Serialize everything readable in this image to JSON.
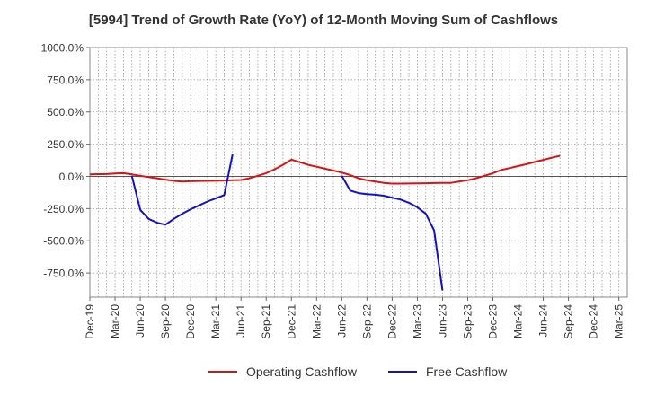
{
  "chart_data": {
    "type": "line",
    "title": "[5994]  Trend of Growth Rate (YoY) of 12-Month Moving Sum of Cashflows",
    "xlabel": "",
    "ylabel": "",
    "ylim": [
      -937.5,
      1000
    ],
    "yticks": [
      1000,
      750,
      500,
      250,
      0,
      -250,
      -500,
      -750
    ],
    "ytick_labels": [
      "1000.0%",
      "750.0%",
      "500.0%",
      "250.0%",
      "0.0%",
      "-250.0%",
      "-500.0%",
      "-750.0%"
    ],
    "x_tick_labels": [
      "Dec-19",
      "Mar-20",
      "Jun-20",
      "Sep-20",
      "Dec-20",
      "Mar-21",
      "Jun-21",
      "Sep-21",
      "Dec-21",
      "Mar-22",
      "Jun-22",
      "Sep-22",
      "Dec-22",
      "Mar-23",
      "Jun-23",
      "Sep-23",
      "Dec-23",
      "Mar-24",
      "Jun-24",
      "Sep-24",
      "Dec-24",
      "Mar-25"
    ],
    "month_count": 64,
    "grid": true,
    "legend_position": "bottom",
    "series": [
      {
        "name": "Operating Cashflow",
        "color": "#dd1111",
        "points": [
          [
            0,
            15
          ],
          [
            1,
            17
          ],
          [
            2,
            18
          ],
          [
            3,
            22
          ],
          [
            4,
            25
          ],
          [
            5,
            15
          ],
          [
            6,
            5
          ],
          [
            7,
            -5
          ],
          [
            8,
            -15
          ],
          [
            9,
            -25
          ],
          [
            10,
            -35
          ],
          [
            11,
            -40
          ],
          [
            12,
            -38
          ],
          [
            13,
            -36
          ],
          [
            14,
            -35
          ],
          [
            15,
            -34
          ],
          [
            16,
            -32
          ],
          [
            17,
            -30
          ],
          [
            18,
            -28
          ],
          [
            19,
            -15
          ],
          [
            20,
            5
          ],
          [
            21,
            25
          ],
          [
            22,
            55
          ],
          [
            23,
            90
          ],
          [
            24,
            130
          ],
          [
            25,
            110
          ],
          [
            26,
            90
          ],
          [
            27,
            75
          ],
          [
            28,
            60
          ],
          [
            29,
            45
          ],
          [
            30,
            30
          ],
          [
            31,
            10
          ],
          [
            32,
            -15
          ],
          [
            33,
            -30
          ],
          [
            34,
            -40
          ],
          [
            35,
            -50
          ],
          [
            36,
            -56
          ],
          [
            37,
            -56
          ],
          [
            38,
            -55
          ],
          [
            39,
            -54
          ],
          [
            40,
            -53
          ],
          [
            41,
            -52
          ],
          [
            42,
            -51
          ],
          [
            43,
            -50
          ],
          [
            44,
            -40
          ],
          [
            45,
            -30
          ],
          [
            46,
            -15
          ],
          [
            47,
            5
          ],
          [
            48,
            25
          ],
          [
            49,
            50
          ],
          [
            50,
            65
          ],
          [
            51,
            80
          ],
          [
            52,
            95
          ],
          [
            53,
            112
          ],
          [
            54,
            128
          ],
          [
            55,
            145
          ],
          [
            56,
            160
          ]
        ]
      },
      {
        "name": "Free Cashflow",
        "color": "#1111cc",
        "points": [
          [
            5,
            5
          ],
          [
            6,
            -260
          ],
          [
            7,
            -330
          ],
          [
            8,
            -360
          ],
          [
            9,
            -375
          ],
          [
            10,
            -330
          ],
          [
            11,
            -290
          ],
          [
            12,
            -255
          ],
          [
            13,
            -225
          ],
          [
            14,
            -195
          ],
          [
            15,
            -170
          ],
          [
            16,
            -145
          ],
          [
            17,
            170
          ]
        ],
        "points_b": [
          [
            30,
            5
          ],
          [
            31,
            -110
          ],
          [
            32,
            -130
          ],
          [
            33,
            -138
          ],
          [
            34,
            -142
          ],
          [
            35,
            -150
          ],
          [
            36,
            -165
          ],
          [
            37,
            -180
          ],
          [
            38,
            -205
          ],
          [
            39,
            -240
          ],
          [
            40,
            -290
          ],
          [
            41,
            -420
          ],
          [
            42,
            -885
          ]
        ]
      }
    ]
  }
}
